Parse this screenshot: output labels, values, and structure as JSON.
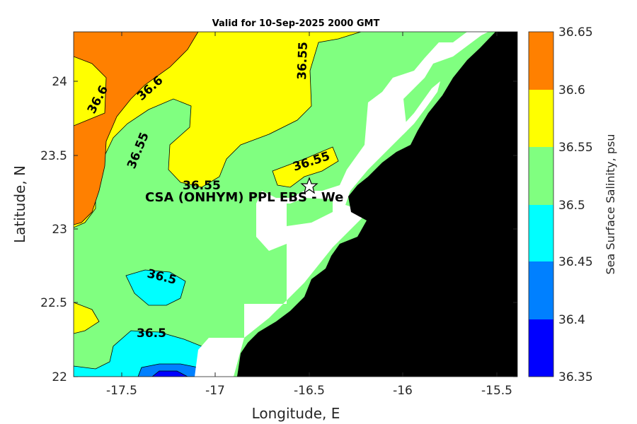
{
  "title": "Valid for 10-Sep-2025 2000 GMT",
  "xlabel": "Longitude, E",
  "ylabel": "Latitude, N",
  "colorbar_label": "Sea Surface Salinity, psu",
  "station_label": "CSA (ONHYM) PPL EBS  - We",
  "chart_data": {
    "type": "heatmap",
    "title": "Valid for 10-Sep-2025 2000 GMT",
    "xlabel": "Longitude, E",
    "ylabel": "Latitude, N",
    "xlim": [
      -17.8,
      -15.35
    ],
    "ylim": [
      22.0,
      24.35
    ],
    "x_ticks": [
      -17.5,
      -17,
      -16.5,
      -16,
      -15.5
    ],
    "y_ticks": [
      22,
      22.5,
      23,
      23.5,
      24
    ],
    "x_tick_labels": [
      "-17.5",
      "-17",
      "-16.5",
      "-16",
      "-15.5"
    ],
    "y_tick_labels": [
      "22",
      "22.5",
      "23",
      "23.5",
      "24"
    ],
    "colorbar": {
      "label": "Sea Surface Salinity, psu",
      "levels": [
        36.35,
        36.4,
        36.45,
        36.5,
        36.55,
        36.6,
        36.65
      ],
      "level_labels": [
        "36.35",
        "36.4",
        "36.45",
        "36.5",
        "36.55",
        "36.6",
        "36.65"
      ],
      "colors": [
        "#0000ff",
        "#0080ff",
        "#00ffff",
        "#80ff80",
        "#ffff00",
        "#ff8000"
      ]
    },
    "contour_labels": [
      {
        "text": "36.6",
        "lon": -17.68,
        "lat": 23.88
      },
      {
        "text": "36.6",
        "lon": -17.36,
        "lat": 23.93
      },
      {
        "text": "36.55",
        "lon": -17.35,
        "lat": 23.55
      },
      {
        "text": "36.55",
        "lon": -16.55,
        "lat": 24.14
      },
      {
        "text": "36.55",
        "lon": -17.05,
        "lat": 23.31
      },
      {
        "text": "36.55",
        "lon": -16.35,
        "lat": 23.45
      },
      {
        "text": "36.5",
        "lon": -17.25,
        "lat": 22.66
      },
      {
        "text": "36.5",
        "lon": -17.33,
        "lat": 22.27
      }
    ],
    "station": {
      "lon": -16.48,
      "lat": 23.29,
      "symbol": "star"
    },
    "land_color": "#000000",
    "nodata_color": "#ffffff"
  }
}
